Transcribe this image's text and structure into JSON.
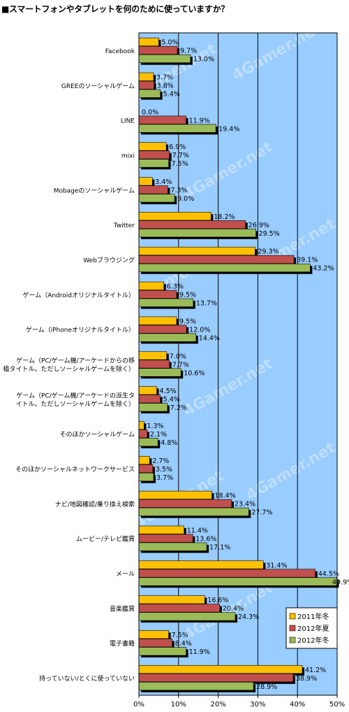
{
  "title": "■スマートフォンやタブレットを何のために使っていますか？",
  "watermark": "4Gamer.net",
  "chart_data": {
    "type": "bar",
    "orientation": "horizontal",
    "title": "■スマートフォンやタブレットを何のために使っていますか？",
    "xlim": [
      0,
      50
    ],
    "tick_labels": [
      "0%",
      "10%",
      "20%",
      "30%",
      "40%",
      "50%"
    ],
    "value_suffix": "%",
    "grid": true,
    "legend_position": "bottom-right",
    "categories": [
      [
        "Facebook"
      ],
      [
        "GREEのソーシャルゲーム"
      ],
      [
        "LINE"
      ],
      [
        "mixi"
      ],
      [
        "Mobageのソーシャルゲーム"
      ],
      [
        "Twitter"
      ],
      [
        "Webブラウジング"
      ],
      [
        "ゲーム（Androidオリジナルタイトル）"
      ],
      [
        "ゲーム（iPhoneオリジナルタイトル）"
      ],
      [
        "ゲーム（PC/ゲーム機/アーケードからの移",
        "植タイトル。ただしソーシャルゲームを除く）"
      ],
      [
        "ゲーム（PC/ゲーム機/アーケードの派生タ",
        "イトル。ただしソーシャルゲームを除く）"
      ],
      [
        "そのほかソーシャルゲーム"
      ],
      [
        "そのほかソーシャルネットワークサービス"
      ],
      [
        "ナビ/地図確認/乗り換え検索"
      ],
      [
        "ムービー/テレビ鑑賞"
      ],
      [
        "メール"
      ],
      [
        "音楽鑑賞"
      ],
      [
        "電子書籍"
      ],
      [
        "持っていない/とくに使っていない"
      ]
    ],
    "series": [
      {
        "name": "2011年冬",
        "color": "#ffc000",
        "values": [
          5.0,
          3.7,
          0.0,
          6.9,
          3.4,
          18.2,
          29.3,
          6.3,
          9.5,
          7.0,
          4.5,
          1.3,
          2.7,
          18.4,
          11.4,
          31.4,
          16.6,
          7.5,
          41.2
        ]
      },
      {
        "name": "2012年夏",
        "color": "#c0504d",
        "values": [
          9.7,
          3.8,
          11.9,
          7.7,
          7.3,
          26.9,
          39.1,
          9.5,
          12.0,
          7.7,
          5.4,
          2.1,
          3.5,
          23.4,
          13.6,
          44.5,
          20.4,
          8.4,
          38.9
        ]
      },
      {
        "name": "2012年冬",
        "color": "#9bbb59",
        "values": [
          13.0,
          5.4,
          19.4,
          7.5,
          9.0,
          29.5,
          43.2,
          13.7,
          14.4,
          10.6,
          7.2,
          4.8,
          3.7,
          27.7,
          17.1,
          49.9,
          24.3,
          11.9,
          28.9
        ]
      }
    ]
  }
}
